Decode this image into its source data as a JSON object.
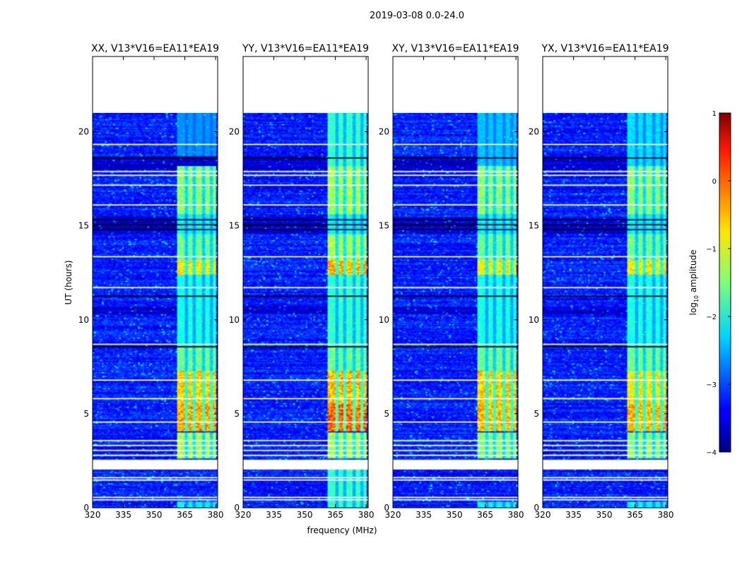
{
  "suptitle": "2019-03-08 0.0-24.0",
  "chart_data": {
    "type": "heatmap",
    "xlabel": "frequency (MHz)",
    "ylabel": "UT (hours)",
    "xlim": [
      320,
      381
    ],
    "ylim": [
      0,
      24
    ],
    "xticks": [
      320,
      335,
      350,
      365,
      380
    ],
    "yticks": [
      0,
      5,
      10,
      15,
      20
    ],
    "colorbar": {
      "label_prefix": "log",
      "label_sub": "10",
      "label_suffix": " amplitude",
      "range": [
        -4,
        1
      ],
      "ticks": [
        -4,
        -3,
        -2,
        -1,
        0,
        1
      ],
      "tick_labels": [
        "−4",
        "−3",
        "−2",
        "−1",
        "0",
        "1"
      ]
    },
    "colors": {
      "background_noise": "#1a2ee0",
      "rfi_low": "#2fe0e8",
      "rfi_mid": "#e8ff3a",
      "rfi_high": "#e01818"
    },
    "data_end_hour": 21.0,
    "rfi_band_mhz": [
      361,
      380
    ],
    "rfi_channel_gaps_mhz": [
      365.5,
      369.5,
      374.0,
      378.0
    ],
    "blank_rows_hours": [
      [
        0.38,
        0.48
      ],
      [
        0.55,
        0.6
      ],
      [
        1.45,
        1.5
      ],
      [
        1.6,
        1.65
      ],
      [
        2.02,
        2.55
      ],
      [
        2.78,
        2.83
      ],
      [
        3.05,
        3.1
      ],
      [
        3.3,
        3.35
      ],
      [
        3.55,
        3.6
      ],
      [
        3.78,
        3.83
      ],
      [
        4.55,
        4.6
      ],
      [
        5.8,
        5.85
      ],
      [
        6.75,
        6.8
      ],
      [
        8.65,
        8.7
      ],
      [
        11.7,
        11.75
      ],
      [
        12.18,
        12.23
      ],
      [
        12.9,
        12.95
      ],
      [
        13.35,
        13.4
      ],
      [
        13.95,
        14.0
      ],
      [
        15.6,
        15.65
      ],
      [
        16.1,
        16.15
      ],
      [
        17.15,
        17.2
      ],
      [
        17.65,
        17.7
      ],
      [
        17.85,
        17.9
      ],
      [
        19.28,
        19.33
      ]
    ],
    "black_rows_hours": [
      [
        8.55,
        8.62
      ],
      [
        11.2,
        11.27
      ],
      [
        14.78,
        14.85
      ],
      [
        15.05,
        15.12
      ],
      [
        15.28,
        15.34
      ],
      [
        18.55,
        18.65
      ]
    ],
    "dark_bands_hours": [
      [
        10.3,
        10.7
      ],
      [
        14.6,
        15.5
      ],
      [
        18.0,
        18.7
      ]
    ],
    "panels": [
      {
        "title": "XX, V13*V16=EA11*EA19",
        "activity": [
          [
            0,
            0.3,
            0.3
          ],
          [
            2.6,
            4.0,
            0.6
          ],
          [
            4.05,
            5.5,
            0.9
          ],
          [
            5.5,
            7.3,
            0.8
          ],
          [
            7.3,
            8.5,
            0.5
          ],
          [
            8.5,
            12.4,
            0.35
          ],
          [
            12.4,
            13.2,
            0.75
          ],
          [
            13.2,
            14.6,
            0.5
          ],
          [
            14.6,
            15.6,
            0.3
          ],
          [
            15.6,
            18.2,
            0.55
          ],
          [
            18.7,
            21,
            0.12
          ]
        ]
      },
      {
        "title": "YY, V13*V16=EA11*EA19",
        "activity": [
          [
            0,
            2.5,
            0.4
          ],
          [
            2.6,
            4.0,
            0.6
          ],
          [
            4.05,
            5.5,
            1.0
          ],
          [
            5.5,
            7.3,
            0.85
          ],
          [
            7.3,
            8.5,
            0.5
          ],
          [
            8.5,
            12.4,
            0.4
          ],
          [
            12.4,
            13.2,
            0.85
          ],
          [
            13.2,
            14.6,
            0.6
          ],
          [
            14.6,
            15.6,
            0.3
          ],
          [
            15.6,
            18.2,
            0.6
          ],
          [
            18.2,
            21,
            0.4
          ]
        ]
      },
      {
        "title": "XY, V13*V16=EA11*EA19",
        "activity": [
          [
            0,
            0.3,
            0.3
          ],
          [
            2.6,
            4.0,
            0.55
          ],
          [
            4.05,
            5.5,
            0.85
          ],
          [
            5.5,
            7.3,
            0.8
          ],
          [
            7.3,
            8.5,
            0.5
          ],
          [
            8.5,
            12.4,
            0.35
          ],
          [
            12.4,
            13.2,
            0.75
          ],
          [
            13.2,
            14.6,
            0.5
          ],
          [
            14.6,
            15.6,
            0.3
          ],
          [
            15.6,
            18.2,
            0.55
          ],
          [
            18.2,
            21,
            0.2
          ]
        ]
      },
      {
        "title": "YX, V13*V16=EA11*EA19",
        "activity": [
          [
            0,
            0.3,
            0.3
          ],
          [
            2.6,
            4.0,
            0.55
          ],
          [
            4.05,
            5.5,
            0.85
          ],
          [
            5.5,
            7.3,
            0.75
          ],
          [
            7.3,
            8.5,
            0.5
          ],
          [
            8.5,
            12.4,
            0.35
          ],
          [
            12.4,
            13.2,
            0.75
          ],
          [
            13.2,
            14.6,
            0.5
          ],
          [
            14.6,
            15.6,
            0.3
          ],
          [
            15.6,
            18.2,
            0.55
          ],
          [
            18.2,
            21,
            0.25
          ]
        ]
      }
    ]
  }
}
